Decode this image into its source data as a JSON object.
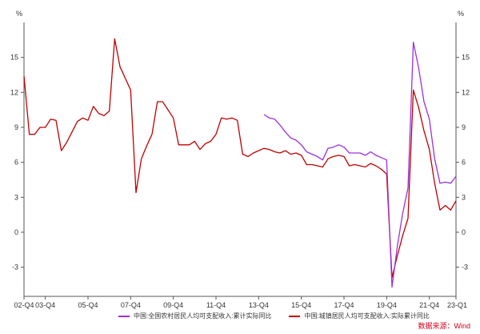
{
  "chart_data": {
    "type": "line",
    "unit_left": "%",
    "unit_right": "%",
    "ylim": [
      -5.5,
      18
    ],
    "y_ticks": [
      15,
      12,
      9,
      6,
      3,
      0,
      -3
    ],
    "y_tick_labels": [
      "15",
      "12",
      "9",
      "6",
      "3",
      "0",
      "-3"
    ],
    "x_start": "2002-Q4",
    "x_end": "2023-Q1",
    "x_tick_labels": [
      {
        "q": "2002-Q4",
        "label": "02-Q4"
      },
      {
        "q": "2003-Q4",
        "label": "03-Q4"
      },
      {
        "q": "2005-Q4",
        "label": "05-Q4"
      },
      {
        "q": "2007-Q4",
        "label": "07-Q4"
      },
      {
        "q": "2009-Q4",
        "label": "09-Q4"
      },
      {
        "q": "2011-Q4",
        "label": "11-Q4"
      },
      {
        "q": "2013-Q4",
        "label": "13-Q4"
      },
      {
        "q": "2015-Q4",
        "label": "15-Q4"
      },
      {
        "q": "2017-Q4",
        "label": "17-Q4"
      },
      {
        "q": "2019-Q4",
        "label": "19-Q4"
      },
      {
        "q": "2021-Q4",
        "label": "21-Q4"
      },
      {
        "q": "2023-Q1",
        "label": "23-Q1"
      }
    ],
    "series": [
      {
        "name": "中国:全国农村居民人均可支配收入:累计实际同比",
        "color": "#9b30e0",
        "points": [
          [
            "2014-Q1",
            10.1
          ],
          [
            "2014-Q2",
            9.8
          ],
          [
            "2014-Q3",
            9.7
          ],
          [
            "2014-Q4",
            9.2
          ],
          [
            "2015-Q1",
            8.6
          ],
          [
            "2015-Q2",
            8.1
          ],
          [
            "2015-Q3",
            7.9
          ],
          [
            "2015-Q4",
            7.5
          ],
          [
            "2016-Q1",
            6.9
          ],
          [
            "2016-Q2",
            6.7
          ],
          [
            "2016-Q3",
            6.5
          ],
          [
            "2016-Q4",
            6.2
          ],
          [
            "2017-Q1",
            7.2
          ],
          [
            "2017-Q2",
            7.3
          ],
          [
            "2017-Q3",
            7.5
          ],
          [
            "2017-Q4",
            7.3
          ],
          [
            "2018-Q1",
            6.8
          ],
          [
            "2018-Q2",
            6.8
          ],
          [
            "2018-Q3",
            6.8
          ],
          [
            "2018-Q4",
            6.6
          ],
          [
            "2019-Q1",
            6.9
          ],
          [
            "2019-Q2",
            6.6
          ],
          [
            "2019-Q3",
            6.4
          ],
          [
            "2019-Q4",
            6.2
          ],
          [
            "2020-Q1",
            -4.7
          ],
          [
            "2020-Q2",
            -1.2
          ],
          [
            "2020-Q3",
            1.6
          ],
          [
            "2020-Q4",
            3.8
          ],
          [
            "2021-Q1",
            16.3
          ],
          [
            "2021-Q2",
            14.1
          ],
          [
            "2021-Q3",
            11.2
          ],
          [
            "2021-Q4",
            9.7
          ],
          [
            "2022-Q1",
            6.3
          ],
          [
            "2022-Q2",
            4.2
          ],
          [
            "2022-Q3",
            4.3
          ],
          [
            "2022-Q4",
            4.2
          ],
          [
            "2023-Q1",
            4.8
          ]
        ]
      },
      {
        "name": "中国:城镇居民人均可支配收入:实际累计同比",
        "color": "#c00000",
        "points": [
          [
            "2002-Q4",
            13.4
          ],
          [
            "2003-Q1",
            8.4
          ],
          [
            "2003-Q2",
            8.4
          ],
          [
            "2003-Q3",
            9.0
          ],
          [
            "2003-Q4",
            9.0
          ],
          [
            "2004-Q1",
            9.7
          ],
          [
            "2004-Q2",
            9.6
          ],
          [
            "2004-Q3",
            7.0
          ],
          [
            "2004-Q4",
            7.7
          ],
          [
            "2005-Q1",
            8.6
          ],
          [
            "2005-Q2",
            9.5
          ],
          [
            "2005-Q3",
            9.8
          ],
          [
            "2005-Q4",
            9.6
          ],
          [
            "2006-Q1",
            10.8
          ],
          [
            "2006-Q2",
            10.2
          ],
          [
            "2006-Q3",
            10.0
          ],
          [
            "2006-Q4",
            10.4
          ],
          [
            "2007-Q1",
            16.6
          ],
          [
            "2007-Q2",
            14.2
          ],
          [
            "2007-Q3",
            13.2
          ],
          [
            "2007-Q4",
            12.2
          ],
          [
            "2008-Q1",
            3.4
          ],
          [
            "2008-Q2",
            6.3
          ],
          [
            "2008-Q3",
            7.4
          ],
          [
            "2008-Q4",
            8.4
          ],
          [
            "2009-Q1",
            11.2
          ],
          [
            "2009-Q2",
            11.2
          ],
          [
            "2009-Q3",
            10.5
          ],
          [
            "2009-Q4",
            9.8
          ],
          [
            "2010-Q1",
            7.5
          ],
          [
            "2010-Q2",
            7.5
          ],
          [
            "2010-Q3",
            7.5
          ],
          [
            "2010-Q4",
            7.8
          ],
          [
            "2011-Q1",
            7.1
          ],
          [
            "2011-Q2",
            7.6
          ],
          [
            "2011-Q3",
            7.8
          ],
          [
            "2011-Q4",
            8.4
          ],
          [
            "2012-Q1",
            9.8
          ],
          [
            "2012-Q2",
            9.7
          ],
          [
            "2012-Q3",
            9.8
          ],
          [
            "2012-Q4",
            9.6
          ],
          [
            "2013-Q1",
            6.7
          ],
          [
            "2013-Q2",
            6.5
          ],
          [
            "2013-Q3",
            6.8
          ],
          [
            "2013-Q4",
            7.0
          ],
          [
            "2014-Q1",
            7.2
          ],
          [
            "2014-Q2",
            7.1
          ],
          [
            "2014-Q3",
            6.9
          ],
          [
            "2014-Q4",
            6.8
          ],
          [
            "2015-Q1",
            7.0
          ],
          [
            "2015-Q2",
            6.7
          ],
          [
            "2015-Q3",
            6.8
          ],
          [
            "2015-Q4",
            6.6
          ],
          [
            "2016-Q1",
            5.8
          ],
          [
            "2016-Q2",
            5.8
          ],
          [
            "2016-Q3",
            5.7
          ],
          [
            "2016-Q4",
            5.6
          ],
          [
            "2017-Q1",
            6.3
          ],
          [
            "2017-Q2",
            6.5
          ],
          [
            "2017-Q3",
            6.6
          ],
          [
            "2017-Q4",
            6.5
          ],
          [
            "2018-Q1",
            5.7
          ],
          [
            "2018-Q2",
            5.8
          ],
          [
            "2018-Q3",
            5.7
          ],
          [
            "2018-Q4",
            5.6
          ],
          [
            "2019-Q1",
            5.9
          ],
          [
            "2019-Q2",
            5.7
          ],
          [
            "2019-Q3",
            5.4
          ],
          [
            "2019-Q4",
            5.0
          ],
          [
            "2020-Q1",
            -3.9
          ],
          [
            "2020-Q2",
            -2.0
          ],
          [
            "2020-Q3",
            -0.3
          ],
          [
            "2020-Q4",
            1.2
          ],
          [
            "2021-Q1",
            12.2
          ],
          [
            "2021-Q2",
            10.7
          ],
          [
            "2021-Q3",
            8.7
          ],
          [
            "2021-Q4",
            7.1
          ],
          [
            "2022-Q1",
            4.2
          ],
          [
            "2022-Q2",
            1.9
          ],
          [
            "2022-Q3",
            2.3
          ],
          [
            "2022-Q4",
            1.9
          ],
          [
            "2023-Q1",
            2.7
          ]
        ]
      }
    ],
    "legend_position": "bottom",
    "grid": false
  },
  "source": "数据来源：Wind"
}
